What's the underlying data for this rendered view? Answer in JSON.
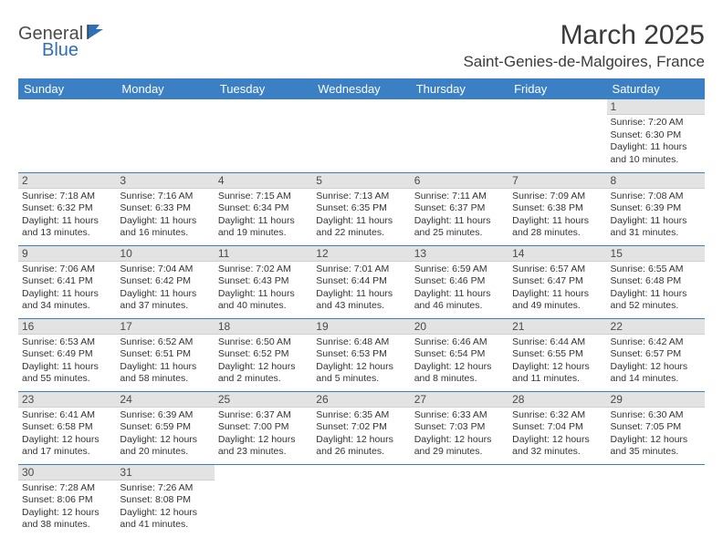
{
  "logo": {
    "text1": "General",
    "text2": "Blue"
  },
  "title": "March 2025",
  "location": "Saint-Genies-de-Malgoires, France",
  "colors": {
    "header_bg": "#3b7fc4",
    "header_fg": "#ffffff",
    "daynum_bg": "#e3e3e3",
    "row_divider": "#3b7fc4",
    "logo_blue": "#2f6fb5",
    "text": "#3a3a3a"
  },
  "weekdays": [
    "Sunday",
    "Monday",
    "Tuesday",
    "Wednesday",
    "Thursday",
    "Friday",
    "Saturday"
  ],
  "weeks": [
    [
      null,
      null,
      null,
      null,
      null,
      null,
      {
        "n": "1",
        "sr": "Sunrise: 7:20 AM",
        "ss": "Sunset: 6:30 PM",
        "d1": "Daylight: 11 hours",
        "d2": "and 10 minutes."
      }
    ],
    [
      {
        "n": "2",
        "sr": "Sunrise: 7:18 AM",
        "ss": "Sunset: 6:32 PM",
        "d1": "Daylight: 11 hours",
        "d2": "and 13 minutes."
      },
      {
        "n": "3",
        "sr": "Sunrise: 7:16 AM",
        "ss": "Sunset: 6:33 PM",
        "d1": "Daylight: 11 hours",
        "d2": "and 16 minutes."
      },
      {
        "n": "4",
        "sr": "Sunrise: 7:15 AM",
        "ss": "Sunset: 6:34 PM",
        "d1": "Daylight: 11 hours",
        "d2": "and 19 minutes."
      },
      {
        "n": "5",
        "sr": "Sunrise: 7:13 AM",
        "ss": "Sunset: 6:35 PM",
        "d1": "Daylight: 11 hours",
        "d2": "and 22 minutes."
      },
      {
        "n": "6",
        "sr": "Sunrise: 7:11 AM",
        "ss": "Sunset: 6:37 PM",
        "d1": "Daylight: 11 hours",
        "d2": "and 25 minutes."
      },
      {
        "n": "7",
        "sr": "Sunrise: 7:09 AM",
        "ss": "Sunset: 6:38 PM",
        "d1": "Daylight: 11 hours",
        "d2": "and 28 minutes."
      },
      {
        "n": "8",
        "sr": "Sunrise: 7:08 AM",
        "ss": "Sunset: 6:39 PM",
        "d1": "Daylight: 11 hours",
        "d2": "and 31 minutes."
      }
    ],
    [
      {
        "n": "9",
        "sr": "Sunrise: 7:06 AM",
        "ss": "Sunset: 6:41 PM",
        "d1": "Daylight: 11 hours",
        "d2": "and 34 minutes."
      },
      {
        "n": "10",
        "sr": "Sunrise: 7:04 AM",
        "ss": "Sunset: 6:42 PM",
        "d1": "Daylight: 11 hours",
        "d2": "and 37 minutes."
      },
      {
        "n": "11",
        "sr": "Sunrise: 7:02 AM",
        "ss": "Sunset: 6:43 PM",
        "d1": "Daylight: 11 hours",
        "d2": "and 40 minutes."
      },
      {
        "n": "12",
        "sr": "Sunrise: 7:01 AM",
        "ss": "Sunset: 6:44 PM",
        "d1": "Daylight: 11 hours",
        "d2": "and 43 minutes."
      },
      {
        "n": "13",
        "sr": "Sunrise: 6:59 AM",
        "ss": "Sunset: 6:46 PM",
        "d1": "Daylight: 11 hours",
        "d2": "and 46 minutes."
      },
      {
        "n": "14",
        "sr": "Sunrise: 6:57 AM",
        "ss": "Sunset: 6:47 PM",
        "d1": "Daylight: 11 hours",
        "d2": "and 49 minutes."
      },
      {
        "n": "15",
        "sr": "Sunrise: 6:55 AM",
        "ss": "Sunset: 6:48 PM",
        "d1": "Daylight: 11 hours",
        "d2": "and 52 minutes."
      }
    ],
    [
      {
        "n": "16",
        "sr": "Sunrise: 6:53 AM",
        "ss": "Sunset: 6:49 PM",
        "d1": "Daylight: 11 hours",
        "d2": "and 55 minutes."
      },
      {
        "n": "17",
        "sr": "Sunrise: 6:52 AM",
        "ss": "Sunset: 6:51 PM",
        "d1": "Daylight: 11 hours",
        "d2": "and 58 minutes."
      },
      {
        "n": "18",
        "sr": "Sunrise: 6:50 AM",
        "ss": "Sunset: 6:52 PM",
        "d1": "Daylight: 12 hours",
        "d2": "and 2 minutes."
      },
      {
        "n": "19",
        "sr": "Sunrise: 6:48 AM",
        "ss": "Sunset: 6:53 PM",
        "d1": "Daylight: 12 hours",
        "d2": "and 5 minutes."
      },
      {
        "n": "20",
        "sr": "Sunrise: 6:46 AM",
        "ss": "Sunset: 6:54 PM",
        "d1": "Daylight: 12 hours",
        "d2": "and 8 minutes."
      },
      {
        "n": "21",
        "sr": "Sunrise: 6:44 AM",
        "ss": "Sunset: 6:55 PM",
        "d1": "Daylight: 12 hours",
        "d2": "and 11 minutes."
      },
      {
        "n": "22",
        "sr": "Sunrise: 6:42 AM",
        "ss": "Sunset: 6:57 PM",
        "d1": "Daylight: 12 hours",
        "d2": "and 14 minutes."
      }
    ],
    [
      {
        "n": "23",
        "sr": "Sunrise: 6:41 AM",
        "ss": "Sunset: 6:58 PM",
        "d1": "Daylight: 12 hours",
        "d2": "and 17 minutes."
      },
      {
        "n": "24",
        "sr": "Sunrise: 6:39 AM",
        "ss": "Sunset: 6:59 PM",
        "d1": "Daylight: 12 hours",
        "d2": "and 20 minutes."
      },
      {
        "n": "25",
        "sr": "Sunrise: 6:37 AM",
        "ss": "Sunset: 7:00 PM",
        "d1": "Daylight: 12 hours",
        "d2": "and 23 minutes."
      },
      {
        "n": "26",
        "sr": "Sunrise: 6:35 AM",
        "ss": "Sunset: 7:02 PM",
        "d1": "Daylight: 12 hours",
        "d2": "and 26 minutes."
      },
      {
        "n": "27",
        "sr": "Sunrise: 6:33 AM",
        "ss": "Sunset: 7:03 PM",
        "d1": "Daylight: 12 hours",
        "d2": "and 29 minutes."
      },
      {
        "n": "28",
        "sr": "Sunrise: 6:32 AM",
        "ss": "Sunset: 7:04 PM",
        "d1": "Daylight: 12 hours",
        "d2": "and 32 minutes."
      },
      {
        "n": "29",
        "sr": "Sunrise: 6:30 AM",
        "ss": "Sunset: 7:05 PM",
        "d1": "Daylight: 12 hours",
        "d2": "and 35 minutes."
      }
    ],
    [
      {
        "n": "30",
        "sr": "Sunrise: 7:28 AM",
        "ss": "Sunset: 8:06 PM",
        "d1": "Daylight: 12 hours",
        "d2": "and 38 minutes."
      },
      {
        "n": "31",
        "sr": "Sunrise: 7:26 AM",
        "ss": "Sunset: 8:08 PM",
        "d1": "Daylight: 12 hours",
        "d2": "and 41 minutes."
      },
      null,
      null,
      null,
      null,
      null
    ]
  ]
}
